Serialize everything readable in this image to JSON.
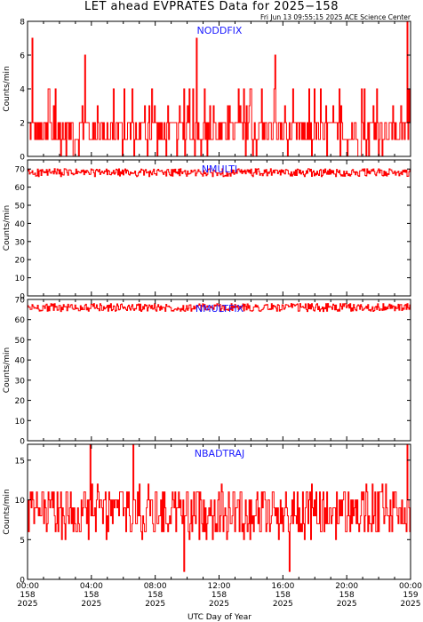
{
  "page": {
    "title": "LET ahead EVPRATES Data for 2025−158",
    "timestamp": "Fri Jun 13 09:55:15 2025 ACE Science Center",
    "xlabel": "UTC Day of Year",
    "colors": {
      "trace": "#ff0000",
      "series_label": "#1a1aff",
      "axes": "#000000",
      "background": "#ffffff"
    }
  },
  "chart_data": [
    {
      "type": "line",
      "series_label": "NODDFIX",
      "ylabel": "Counts/min",
      "ylim": [
        0,
        8
      ],
      "yticks": [
        0,
        2,
        4,
        6,
        8
      ],
      "xlim": [
        0,
        24
      ],
      "baseline": 1.4,
      "noise": 1.1,
      "spikes": [
        [
          0.3,
          7
        ],
        [
          3.6,
          6
        ],
        [
          10.6,
          7
        ],
        [
          15.5,
          6
        ],
        [
          23.8,
          8
        ]
      ]
    },
    {
      "type": "line",
      "series_label": "NMULTI",
      "ylabel": "Counts/min",
      "ylim": [
        0,
        75
      ],
      "yticks": [
        0,
        10,
        20,
        30,
        40,
        50,
        60,
        70
      ],
      "xlim": [
        0,
        24
      ],
      "baseline": 68,
      "noise": 2.2,
      "spikes": []
    },
    {
      "type": "line",
      "series_label": "NMULTFIX",
      "ylabel": "Counts/min",
      "ylim": [
        0,
        70
      ],
      "yticks": [
        0,
        10,
        20,
        30,
        40,
        50,
        60,
        70
      ],
      "xlim": [
        0,
        24
      ],
      "baseline": 66,
      "noise": 2.0,
      "spikes": []
    },
    {
      "type": "line",
      "series_label": "NBADTRAJ",
      "ylabel": "Counts/min",
      "ylim": [
        0,
        17
      ],
      "yticks": [
        0,
        5,
        10,
        15
      ],
      "xlim": [
        0,
        24
      ],
      "baseline": 8.5,
      "noise": 3.2,
      "spikes": [
        [
          3.9,
          17
        ],
        [
          6.6,
          17
        ],
        [
          23.8,
          17
        ],
        [
          9.8,
          1
        ],
        [
          16.4,
          1
        ]
      ]
    }
  ],
  "x_axis": {
    "ticks": [
      {
        "hour": 0,
        "time": "00:00",
        "doy": "158",
        "year": "2025"
      },
      {
        "hour": 4,
        "time": "04:00",
        "doy": "158",
        "year": "2025"
      },
      {
        "hour": 8,
        "time": "08:00",
        "doy": "158",
        "year": "2025"
      },
      {
        "hour": 12,
        "time": "12:00",
        "doy": "158",
        "year": "2025"
      },
      {
        "hour": 16,
        "time": "16:00",
        "doy": "158",
        "year": "2025"
      },
      {
        "hour": 20,
        "time": "20:00",
        "doy": "158",
        "year": "2025"
      },
      {
        "hour": 24,
        "time": "00:00",
        "doy": "159",
        "year": "2025"
      }
    ]
  }
}
